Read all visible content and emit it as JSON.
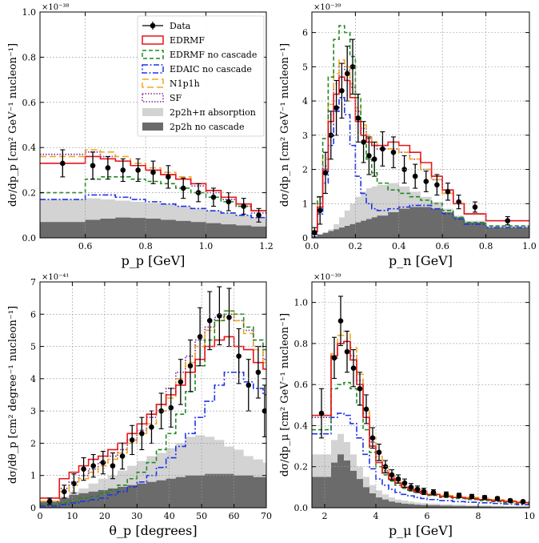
{
  "legend": [
    {
      "key": "data",
      "label": "Data"
    },
    {
      "key": "edrmf",
      "label": "EDRMF"
    },
    {
      "key": "edrmf_nc",
      "label": "EDRMF no cascade"
    },
    {
      "key": "edaic_nc",
      "label": "EDAIC no cascade"
    },
    {
      "key": "n1p1h",
      "label": "N1p1h"
    },
    {
      "key": "sf",
      "label": "SF"
    },
    {
      "key": "abs",
      "label": "2p2h+π absorption"
    },
    {
      "key": "nocasc",
      "label": "2p2h no cascade"
    }
  ],
  "colors": {
    "edrmf": "#e8141b",
    "edrmf_nc": "#1e8a1e",
    "edaic_nc": "#1f33e8",
    "n1p1h": "#f5a623",
    "sf": "#7a2a8c",
    "abs": "#d3d3d3",
    "nocasc": "#6b6b6b",
    "data": "#000000"
  },
  "chart_data": [
    {
      "type": "step-histogram",
      "panel": "top-left",
      "xlabel": "p_p [GeV]",
      "ylabel": "dσ/dp_p [cm² GeV⁻¹ nucleon⁻¹]",
      "multiplier": "×10⁻³⁸",
      "xlim": [
        0.45,
        1.2
      ],
      "ylim": [
        0,
        1.0
      ],
      "xticks": [
        0.6,
        0.8,
        1.0,
        1.2
      ],
      "xtick_labels": [
        "0.6",
        "0.8",
        "1.0",
        "1.2"
      ],
      "yticks": [
        0,
        0.2,
        0.4,
        0.6,
        0.8,
        1.0
      ],
      "ytick_labels": [
        "0.0",
        "0.2",
        "0.4",
        "0.6",
        "0.8",
        "1.0"
      ],
      "edges": [
        0.45,
        0.6,
        0.65,
        0.7,
        0.75,
        0.8,
        0.85,
        0.9,
        0.95,
        1.0,
        1.05,
        1.1,
        1.15,
        1.2
      ],
      "series": {
        "nocasc": [
          0.07,
          0.08,
          0.085,
          0.09,
          0.088,
          0.085,
          0.08,
          0.075,
          0.07,
          0.065,
          0.06,
          0.055,
          0.05
        ],
        "abs": [
          0.17,
          0.175,
          0.17,
          0.165,
          0.16,
          0.155,
          0.15,
          0.14,
          0.13,
          0.12,
          0.11,
          0.1,
          0.09
        ],
        "edrmf": [
          0.33,
          0.36,
          0.35,
          0.34,
          0.32,
          0.3,
          0.28,
          0.26,
          0.24,
          0.21,
          0.18,
          0.15,
          0.12
        ],
        "edrmf_nc": [
          0.2,
          0.26,
          0.27,
          0.27,
          0.26,
          0.25,
          0.24,
          0.22,
          0.2,
          0.18,
          0.16,
          0.14,
          0.12
        ],
        "edaic_nc": [
          0.17,
          0.19,
          0.19,
          0.18,
          0.17,
          0.16,
          0.15,
          0.14,
          0.13,
          0.12,
          0.11,
          0.1,
          0.09
        ],
        "n1p1h": [
          0.36,
          0.39,
          0.38,
          0.36,
          0.33,
          0.31,
          0.29,
          0.27,
          0.24,
          0.21,
          0.18,
          0.15,
          0.12
        ],
        "sf": [
          0.37,
          0.38,
          0.36,
          0.34,
          0.32,
          0.3,
          0.28,
          0.26,
          0.23,
          0.2,
          0.17,
          0.14,
          0.11
        ]
      },
      "data": {
        "x": [
          0.525,
          0.625,
          0.675,
          0.725,
          0.775,
          0.825,
          0.875,
          0.925,
          0.975,
          1.025,
          1.075,
          1.125,
          1.175
        ],
        "y": [
          0.33,
          0.32,
          0.31,
          0.3,
          0.3,
          0.29,
          0.27,
          0.22,
          0.2,
          0.18,
          0.16,
          0.14,
          0.1
        ],
        "err": [
          0.06,
          0.06,
          0.05,
          0.05,
          0.05,
          0.05,
          0.05,
          0.045,
          0.04,
          0.04,
          0.04,
          0.035,
          0.03
        ]
      }
    },
    {
      "type": "step-histogram",
      "panel": "top-right",
      "xlabel": "p_n [GeV]",
      "ylabel": "dσ/dp_n [cm² GeV⁻¹ nucleon⁻¹]",
      "multiplier": "×10⁻³⁹",
      "xlim": [
        0,
        1.0
      ],
      "ylim": [
        0,
        6.6
      ],
      "xticks": [
        0,
        0.2,
        0.4,
        0.6,
        0.8,
        1.0
      ],
      "xtick_labels": [
        "0.0",
        "0.2",
        "0.4",
        "0.6",
        "0.8",
        "1.0"
      ],
      "yticks": [
        0,
        1,
        2,
        3,
        4,
        5,
        6
      ],
      "ytick_labels": [
        "0",
        "1",
        "2",
        "3",
        "4",
        "5",
        "6"
      ],
      "edges": [
        0,
        0.025,
        0.05,
        0.075,
        0.1,
        0.125,
        0.15,
        0.175,
        0.2,
        0.225,
        0.25,
        0.275,
        0.3,
        0.35,
        0.4,
        0.45,
        0.5,
        0.55,
        0.6,
        0.65,
        0.7,
        0.8,
        1.0
      ],
      "series": {
        "nocasc": [
          0.05,
          0.1,
          0.15,
          0.2,
          0.25,
          0.3,
          0.35,
          0.4,
          0.45,
          0.5,
          0.55,
          0.6,
          0.65,
          0.75,
          0.85,
          0.9,
          0.9,
          0.85,
          0.75,
          0.6,
          0.45,
          0.3
        ],
        "abs": [
          0.05,
          0.1,
          0.15,
          0.25,
          0.4,
          0.6,
          0.8,
          1.0,
          1.2,
          1.35,
          1.45,
          1.5,
          1.55,
          1.6,
          1.5,
          1.35,
          1.2,
          1.05,
          0.85,
          0.65,
          0.5,
          0.35
        ],
        "edrmf": [
          0.2,
          0.9,
          2.0,
          3.4,
          4.2,
          4.7,
          4.6,
          4.1,
          3.4,
          3.0,
          2.8,
          2.7,
          2.7,
          2.8,
          2.7,
          2.5,
          2.2,
          1.8,
          1.4,
          1.0,
          0.7,
          0.5
        ],
        "edrmf_nc": [
          0.2,
          1.2,
          2.9,
          4.7,
          5.8,
          6.2,
          6.0,
          5.3,
          4.1,
          3.0,
          2.3,
          1.9,
          1.6,
          1.4,
          1.3,
          1.2,
          1.1,
          1.0,
          0.8,
          0.6,
          0.45,
          0.35
        ],
        "edaic_nc": [
          0.1,
          0.7,
          1.6,
          2.7,
          3.7,
          4.1,
          3.6,
          2.7,
          1.8,
          1.3,
          1.0,
          0.85,
          0.8,
          0.85,
          0.9,
          0.95,
          0.95,
          0.85,
          0.7,
          0.55,
          0.4,
          0.3
        ],
        "n1p1h": [
          0.2,
          1.0,
          2.3,
          3.9,
          4.8,
          5.2,
          5.0,
          4.5,
          3.8,
          3.3,
          3.0,
          2.8,
          2.7,
          2.6,
          2.5,
          2.3,
          2.0,
          1.7,
          1.3,
          1.0,
          0.7,
          0.5
        ],
        "sf": [
          0.2,
          1.0,
          2.1,
          3.6,
          4.5,
          5.0,
          4.9,
          4.4,
          3.7,
          3.2,
          2.9,
          2.7,
          2.6,
          2.6,
          2.5,
          2.3,
          2.0,
          1.7,
          1.3,
          1.0,
          0.7,
          0.5
        ]
      },
      "data": {
        "x": [
          0.0125,
          0.0375,
          0.0625,
          0.0875,
          0.1125,
          0.1375,
          0.1625,
          0.1875,
          0.2125,
          0.2375,
          0.2625,
          0.2875,
          0.325,
          0.375,
          0.425,
          0.475,
          0.525,
          0.575,
          0.625,
          0.675,
          0.75,
          0.9
        ],
        "y": [
          0.15,
          0.8,
          1.9,
          3.0,
          3.8,
          4.3,
          4.8,
          5.0,
          3.5,
          2.8,
          2.4,
          2.3,
          2.6,
          2.5,
          2.0,
          1.8,
          1.65,
          1.55,
          1.35,
          1.05,
          0.9,
          0.5
        ],
        "err": [
          0.15,
          0.4,
          0.6,
          0.7,
          0.8,
          0.8,
          0.8,
          0.8,
          0.7,
          0.6,
          0.55,
          0.5,
          0.5,
          0.45,
          0.4,
          0.35,
          0.3,
          0.3,
          0.25,
          0.2,
          0.15,
          0.12
        ]
      }
    },
    {
      "type": "step-histogram",
      "panel": "bottom-left",
      "xlabel": "θ_p [degrees]",
      "ylabel": "dσ/dθ_p [cm² degree⁻¹ nucleon⁻¹]",
      "multiplier": "×10⁻⁴¹",
      "xlim": [
        0,
        70
      ],
      "ylim": [
        0,
        7
      ],
      "xticks": [
        0,
        10,
        20,
        30,
        40,
        50,
        60,
        70
      ],
      "xtick_labels": [
        "0",
        "10",
        "20",
        "30",
        "40",
        "50",
        "60",
        "70"
      ],
      "yticks": [
        0,
        1,
        2,
        3,
        4,
        5,
        6,
        7
      ],
      "ytick_labels": [
        "0",
        "1",
        "2",
        "3",
        "4",
        "5",
        "6",
        "7"
      ],
      "edges": [
        0,
        6,
        9,
        12,
        15,
        18,
        21,
        24,
        27,
        30,
        33,
        36,
        39,
        42,
        45,
        48,
        51,
        54,
        57,
        60,
        63,
        66,
        69,
        70
      ],
      "series": {
        "nocasc": [
          0.2,
          0.3,
          0.4,
          0.45,
          0.5,
          0.55,
          0.6,
          0.65,
          0.7,
          0.75,
          0.8,
          0.85,
          0.9,
          0.95,
          1.0,
          1.0,
          1.05,
          1.05,
          1.05,
          1.0,
          1.0,
          0.95,
          0.95
        ],
        "abs": [
          0.2,
          0.35,
          0.5,
          0.6,
          0.75,
          0.9,
          1.0,
          1.15,
          1.3,
          1.45,
          1.6,
          1.7,
          1.85,
          2.0,
          2.2,
          2.25,
          2.2,
          2.1,
          1.9,
          1.8,
          1.6,
          1.5,
          1.4
        ],
        "edrmf": [
          0.3,
          0.9,
          1.1,
          1.3,
          1.5,
          1.6,
          1.8,
          2.0,
          2.3,
          2.6,
          2.9,
          3.2,
          3.5,
          3.8,
          4.2,
          4.6,
          5.0,
          5.2,
          5.3,
          5.0,
          4.9,
          4.5,
          4.3
        ],
        "edrmf_nc": [
          0.1,
          0.15,
          0.2,
          0.3,
          0.35,
          0.45,
          0.55,
          0.7,
          0.9,
          1.1,
          1.4,
          1.8,
          2.3,
          2.9,
          3.6,
          4.4,
          5.2,
          5.8,
          6.1,
          6.0,
          5.6,
          5.2,
          4.9
        ],
        "edaic_nc": [
          0.05,
          0.1,
          0.15,
          0.2,
          0.25,
          0.3,
          0.4,
          0.5,
          0.65,
          0.8,
          1.0,
          1.25,
          1.55,
          1.9,
          2.3,
          2.8,
          3.3,
          3.8,
          4.2,
          4.2,
          3.9,
          3.7,
          3.5
        ],
        "n1p1h": [
          0.2,
          0.5,
          0.7,
          0.9,
          1.1,
          1.3,
          1.5,
          1.7,
          2.0,
          2.3,
          2.6,
          3.0,
          3.4,
          4.0,
          4.5,
          5.0,
          5.5,
          5.8,
          6.1,
          5.8,
          5.4,
          4.9,
          4.5
        ],
        "sf": [
          0.2,
          0.6,
          0.8,
          1.0,
          1.2,
          1.4,
          1.6,
          1.8,
          2.1,
          2.4,
          2.8,
          3.2,
          3.7,
          4.2,
          4.7,
          5.2,
          5.6,
          5.9,
          6.0,
          5.8,
          5.5,
          5.0,
          4.6
        ]
      },
      "data": {
        "x": [
          3,
          7.5,
          10.5,
          13.5,
          16.5,
          19.5,
          22.5,
          25.5,
          28.5,
          31.5,
          34.5,
          37.5,
          40.5,
          43.5,
          46.5,
          49.5,
          52.5,
          55.5,
          58.5,
          61.5,
          64.5,
          67.5,
          69.5
        ],
        "y": [
          0.2,
          0.5,
          0.75,
          1.2,
          1.3,
          1.4,
          1.3,
          1.6,
          2.1,
          2.3,
          2.5,
          3.0,
          3.1,
          3.9,
          4.4,
          5.3,
          5.8,
          5.95,
          5.9,
          4.7,
          3.8,
          4.2,
          3.0
        ],
        "err": [
          0.1,
          0.2,
          0.3,
          0.35,
          0.35,
          0.35,
          0.4,
          0.4,
          0.45,
          0.5,
          0.5,
          0.55,
          0.6,
          0.7,
          0.8,
          0.9,
          0.9,
          0.9,
          0.9,
          0.85,
          0.8,
          0.8,
          0.8
        ]
      }
    },
    {
      "type": "step-histogram",
      "panel": "bottom-right",
      "xlabel": "p_μ [GeV]",
      "ylabel": "dσ/dp_μ [cm² GeV⁻¹ nucleon⁻¹]",
      "multiplier": "×10⁻³⁹",
      "xlim": [
        1.5,
        10
      ],
      "ylim": [
        0,
        1.1
      ],
      "xticks": [
        2,
        4,
        6,
        8,
        10
      ],
      "xtick_labels": [
        "2",
        "4",
        "6",
        "8",
        "10"
      ],
      "yticks": [
        0,
        0.2,
        0.4,
        0.6,
        0.8,
        1.0
      ],
      "ytick_labels": [
        "0.0",
        "0.2",
        "0.4",
        "0.6",
        "0.8",
        "1.0"
      ],
      "edges": [
        1.5,
        2.25,
        2.5,
        2.75,
        3.0,
        3.25,
        3.5,
        3.75,
        4.0,
        4.25,
        4.5,
        4.75,
        5.0,
        5.25,
        5.5,
        5.75,
        6.0,
        6.5,
        7.0,
        7.5,
        8.0,
        8.5,
        9.0,
        9.5,
        10.0
      ],
      "series": {
        "nocasc": [
          0.15,
          0.22,
          0.26,
          0.23,
          0.18,
          0.14,
          0.1,
          0.07,
          0.05,
          0.04,
          0.03,
          0.025,
          0.02,
          0.018,
          0.015,
          0.013,
          0.012,
          0.01,
          0.009,
          0.008,
          0.007,
          0.006,
          0.005,
          0.005
        ],
        "abs": [
          0.26,
          0.33,
          0.36,
          0.32,
          0.26,
          0.2,
          0.15,
          0.11,
          0.085,
          0.065,
          0.05,
          0.04,
          0.035,
          0.03,
          0.026,
          0.023,
          0.02,
          0.017,
          0.015,
          0.013,
          0.011,
          0.01,
          0.009,
          0.008
        ],
        "edrmf": [
          0.45,
          0.74,
          0.8,
          0.81,
          0.72,
          0.6,
          0.44,
          0.3,
          0.22,
          0.17,
          0.14,
          0.12,
          0.1,
          0.09,
          0.08,
          0.07,
          0.065,
          0.055,
          0.05,
          0.045,
          0.04,
          0.035,
          0.03,
          0.025
        ],
        "edrmf_nc": [
          0.38,
          0.58,
          0.6,
          0.61,
          0.58,
          0.5,
          0.38,
          0.27,
          0.2,
          0.16,
          0.13,
          0.11,
          0.095,
          0.085,
          0.075,
          0.065,
          0.06,
          0.05,
          0.045,
          0.04,
          0.035,
          0.03,
          0.025,
          0.02
        ],
        "edaic_nc": [
          0.36,
          0.44,
          0.46,
          0.45,
          0.41,
          0.34,
          0.26,
          0.19,
          0.14,
          0.11,
          0.09,
          0.075,
          0.065,
          0.058,
          0.05,
          0.045,
          0.04,
          0.035,
          0.03,
          0.027,
          0.024,
          0.021,
          0.018,
          0.015
        ],
        "n1p1h": [
          0.45,
          0.75,
          0.84,
          0.86,
          0.78,
          0.65,
          0.48,
          0.34,
          0.25,
          0.19,
          0.155,
          0.13,
          0.11,
          0.1,
          0.09,
          0.08,
          0.07,
          0.06,
          0.055,
          0.05,
          0.045,
          0.04,
          0.035,
          0.03
        ],
        "sf": [
          0.44,
          0.73,
          0.8,
          0.81,
          0.74,
          0.62,
          0.46,
          0.32,
          0.23,
          0.18,
          0.145,
          0.12,
          0.1,
          0.09,
          0.08,
          0.07,
          0.065,
          0.055,
          0.05,
          0.045,
          0.04,
          0.035,
          0.03,
          0.025
        ]
      },
      "data": {
        "x": [
          1.875,
          2.375,
          2.625,
          2.875,
          3.125,
          3.375,
          3.625,
          3.875,
          4.125,
          4.375,
          4.625,
          4.875,
          5.125,
          5.375,
          5.625,
          5.875,
          6.25,
          6.75,
          7.25,
          7.75,
          8.25,
          8.75,
          9.25,
          9.75
        ],
        "y": [
          0.46,
          0.73,
          0.91,
          0.76,
          0.68,
          0.58,
          0.48,
          0.34,
          0.27,
          0.2,
          0.16,
          0.14,
          0.12,
          0.1,
          0.09,
          0.08,
          0.075,
          0.065,
          0.06,
          0.055,
          0.05,
          0.045,
          0.035,
          0.03
        ],
        "err": [
          0.12,
          0.1,
          0.12,
          0.1,
          0.09,
          0.08,
          0.07,
          0.05,
          0.04,
          0.03,
          0.025,
          0.02,
          0.02,
          0.018,
          0.016,
          0.015,
          0.013,
          0.012,
          0.011,
          0.01,
          0.009,
          0.008,
          0.007,
          0.006
        ]
      }
    }
  ]
}
